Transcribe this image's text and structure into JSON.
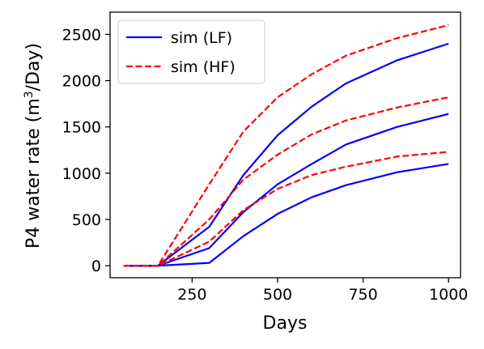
{
  "chart_data": {
    "type": "line",
    "xlabel": "Days",
    "ylabel": "P4 water rate (m",
    "ylabel_sup": "3",
    "ylabel_tail": "/Day)",
    "xlim": [
      10,
      1035
    ],
    "ylim": [
      -130,
      2740
    ],
    "xticks": [
      250,
      500,
      750,
      1000
    ],
    "xtick_labels": [
      "250",
      "500",
      "750",
      "1000"
    ],
    "yticks": [
      0,
      500,
      1000,
      1500,
      2000,
      2500
    ],
    "ytick_labels": [
      "0",
      "500",
      "1000",
      "1500",
      "2000",
      "2500"
    ],
    "grid": false,
    "legend_position": "top-left",
    "legend": [
      {
        "label": "sim (LF)",
        "color": "#0000ff",
        "style": "solid"
      },
      {
        "label": "sim (HF)",
        "color": "#ff0000",
        "style": "dashed"
      }
    ],
    "series": [
      {
        "group": "LF",
        "color": "#0000ff",
        "style": "solid",
        "x": [
          50,
          100,
          150,
          300,
          400,
          500,
          600,
          700,
          850,
          1000
        ],
        "y": [
          0,
          0,
          0,
          420,
          980,
          1410,
          1720,
          1970,
          2220,
          2400
        ]
      },
      {
        "group": "LF",
        "color": "#0000ff",
        "style": "solid",
        "x": [
          50,
          100,
          150,
          300,
          400,
          500,
          600,
          700,
          850,
          1000
        ],
        "y": [
          0,
          0,
          0,
          190,
          580,
          880,
          1100,
          1310,
          1500,
          1640
        ]
      },
      {
        "group": "LF",
        "color": "#0000ff",
        "style": "solid",
        "x": [
          50,
          100,
          150,
          300,
          400,
          500,
          600,
          700,
          850,
          1000
        ],
        "y": [
          0,
          0,
          0,
          30,
          320,
          560,
          740,
          870,
          1010,
          1100
        ]
      },
      {
        "group": "HF",
        "color": "#ff0000",
        "style": "dashed",
        "x": [
          50,
          100,
          150,
          300,
          400,
          500,
          600,
          700,
          850,
          1000
        ],
        "y": [
          0,
          0,
          0,
          880,
          1450,
          1820,
          2070,
          2270,
          2460,
          2600
        ]
      },
      {
        "group": "HF",
        "color": "#ff0000",
        "style": "dashed",
        "x": [
          50,
          100,
          150,
          300,
          400,
          500,
          600,
          700,
          850,
          1000
        ],
        "y": [
          0,
          0,
          0,
          500,
          930,
          1200,
          1420,
          1570,
          1710,
          1820
        ]
      },
      {
        "group": "HF",
        "color": "#ff0000",
        "style": "dashed",
        "x": [
          50,
          100,
          150,
          300,
          400,
          500,
          600,
          700,
          850,
          1000
        ],
        "y": [
          0,
          0,
          0,
          260,
          600,
          830,
          980,
          1070,
          1180,
          1230
        ]
      }
    ]
  }
}
